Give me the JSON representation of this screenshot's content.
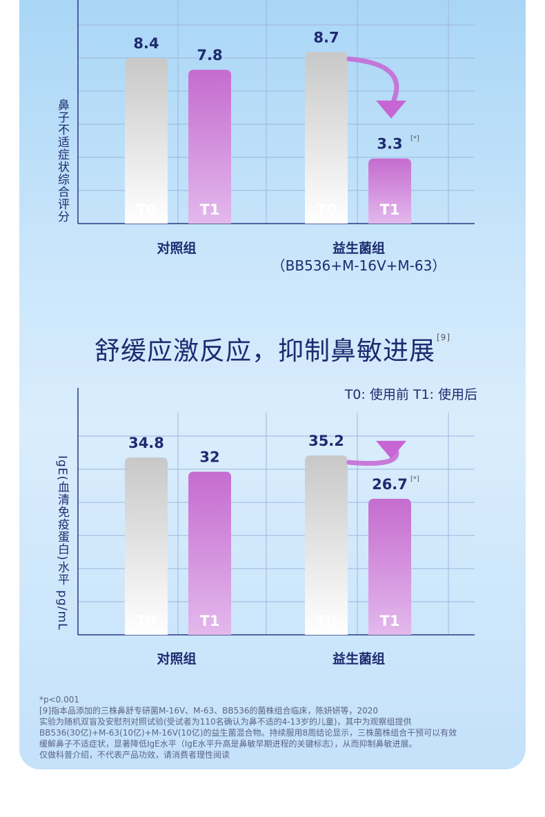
{
  "chart_data": [
    {
      "type": "bar",
      "ylabel": "鼻子不适症状综合评分",
      "groups": [
        {
          "label": "对照组",
          "sublabel": ""
        },
        {
          "label": "益生菌组",
          "sublabel": "（BB536+M-16V+M-63）"
        }
      ],
      "series": [
        {
          "name": "T0",
          "values": [
            8.4,
            8.7
          ]
        },
        {
          "name": "T1",
          "values": [
            7.8,
            3.3
          ]
        }
      ],
      "value_labels": [
        "8.4",
        "7.8",
        "8.7",
        "3.3"
      ],
      "significance": [
        false,
        false,
        false,
        true
      ],
      "colors": {
        "T0_top": "#c8c8c8",
        "T0_bottom": "#ffffff",
        "T1_top": "#c56ccf",
        "T1_bottom": "#e3b8ec",
        "label": "#1e2a70",
        "arrow": "#c765d4"
      }
    },
    {
      "type": "bar",
      "ylabel": "IgE(血清免疫蛋白)水平 pg/mL",
      "groups": [
        {
          "label": "对照组",
          "sublabel": ""
        },
        {
          "label": "益生菌组",
          "sublabel": ""
        }
      ],
      "series": [
        {
          "name": "T0",
          "values": [
            34.8,
            35.2
          ]
        },
        {
          "name": "T1",
          "values": [
            32,
            26.7
          ]
        }
      ],
      "value_labels": [
        "34.8",
        "32",
        "35.2",
        "26.7"
      ],
      "significance": [
        false,
        false,
        false,
        true
      ],
      "colors": {
        "T0_top": "#c8c8c8",
        "T0_bottom": "#ffffff",
        "T1_top": "#c56ccf",
        "T1_bottom": "#e3b8ec",
        "label": "#1e2a70",
        "arrow": "#c765d4"
      }
    }
  ],
  "sig_mark": "[*]",
  "heading": {
    "text": "舒缓应激反应，抑制鼻敏进展",
    "ref": "[9]"
  },
  "legend": "T0: 使用前   T1: 使用后",
  "footnote": [
    "*p<0.001",
    "[9]指本品添加的三株鼻舒专研菌M-16V、M-63、BB536的菌株组合临床，陈妍妍等，2020",
    "实验为随机双盲及安慰剂对照试验(受试者为110名确认为鼻不适的4-13岁的儿童)，其中为观察组提供",
    "BB536(30亿)+M-63(10亿)+M-16V(10亿)的益生菌混合物。持续服用8周结论显示，三株菌株组合干预可以有效",
    "缓解鼻子不适症状，显著降低IgE水平（IgE水平升高是鼻敏早期进程的关键标志），从而抑制鼻敏进展。",
    "仅做科普介绍，不代表产品功效，请消费者理性阅读"
  ]
}
